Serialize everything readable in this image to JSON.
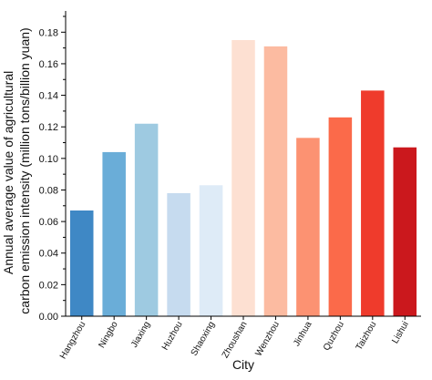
{
  "chart_data": {
    "type": "bar",
    "title": "",
    "xlabel": "City",
    "ylabel_lines": [
      "Annual average value of agricultural",
      "carbon emission intensity (million tons/billion yuan)"
    ],
    "categories": [
      "Hangzhou",
      "Ningbo",
      "Jiaxing",
      "Huzhou",
      "Shaoxing",
      "Zhoushan",
      "Wenzhou",
      "Jinhua",
      "Quzhou",
      "Taizhou",
      "Lishui"
    ],
    "values": [
      0.067,
      0.104,
      0.122,
      0.078,
      0.083,
      0.175,
      0.171,
      0.113,
      0.126,
      0.143,
      0.107
    ],
    "colors": [
      "#3f88c5",
      "#6aadd8",
      "#9ecae1",
      "#c6dbef",
      "#deebf7",
      "#fde0d2",
      "#fcbba1",
      "#fc9272",
      "#fb6a4a",
      "#ef3b2c",
      "#cb181d"
    ],
    "ylim": [
      0,
      0.19
    ],
    "yticks": [
      0.0,
      0.02,
      0.04,
      0.06,
      0.08,
      0.1,
      0.12,
      0.14,
      0.16,
      0.18
    ],
    "ytick_labels": [
      "0.00",
      "0.02",
      "0.04",
      "0.06",
      "0.08",
      "0.10",
      "0.12",
      "0.14",
      "0.16",
      "0.18"
    ],
    "grid": false,
    "legend": "none"
  }
}
